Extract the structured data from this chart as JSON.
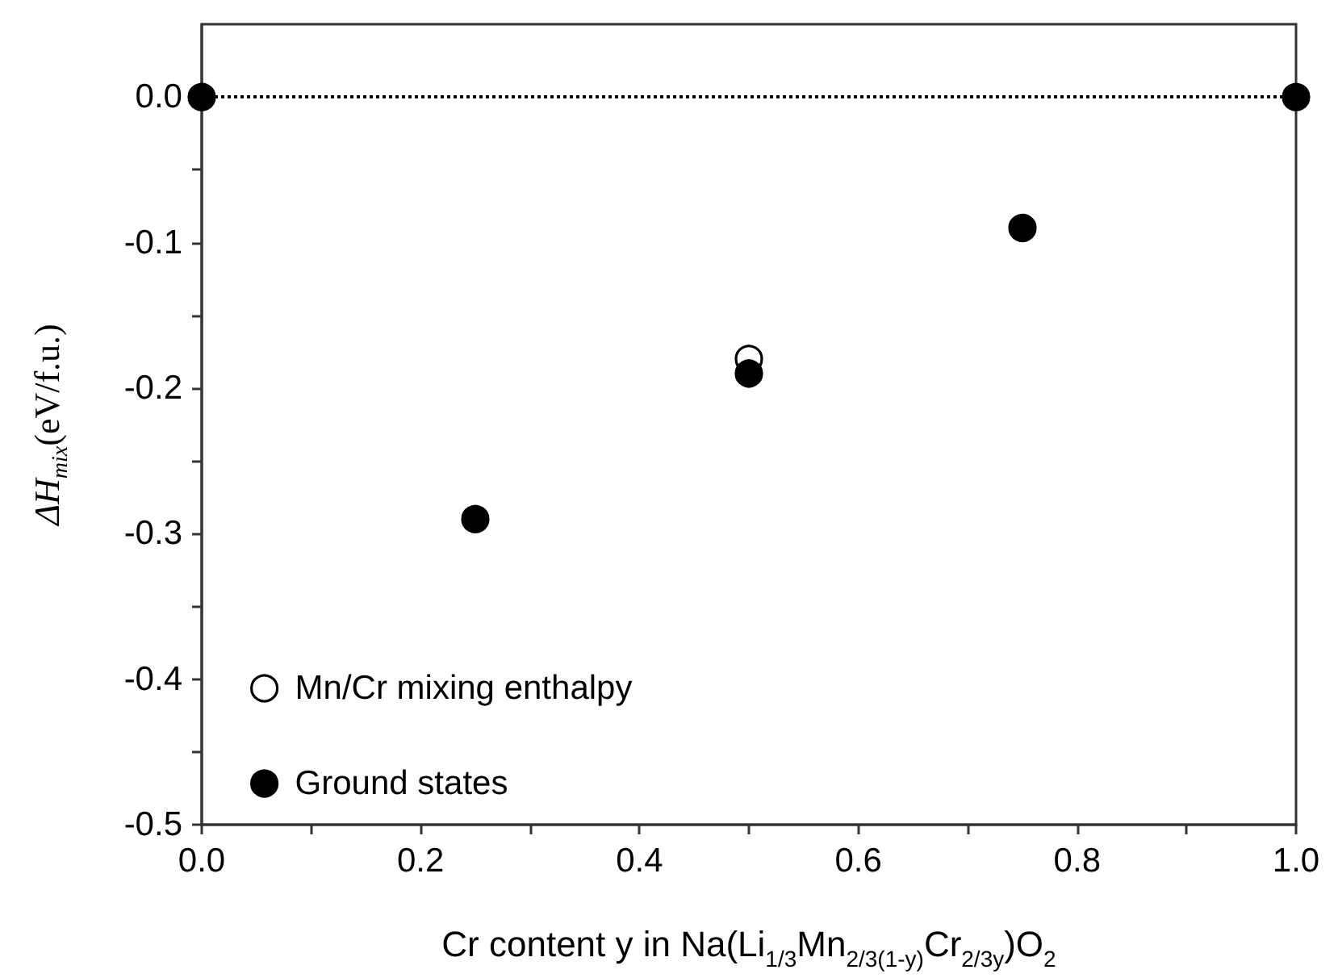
{
  "chart_data": {
    "type": "scatter",
    "xlabel": "Cr content y in Na(Li$_{1/3}$Mn$_{2/3(1-y)}$Cr$_{2/3y}$)O$_{2}$",
    "ylabel": "ΔH$_{mix}$(eV/f.u.)",
    "series": [
      {
        "name": "Mn/Cr mixing enthalpy",
        "color": "#ffffff",
        "x": [
          0.5
        ],
        "values": [
          -0.18
        ]
      },
      {
        "name": "Ground states",
        "color": "#000000",
        "x": [
          0,
          0.25,
          0.5,
          0.75,
          1
        ],
        "values": [
          0,
          -0.29,
          -0.19,
          -0.09,
          0
        ]
      }
    ],
    "xlim": [
      0,
      1
    ],
    "xticks": [
      {
        "value": 0,
        "label": "0.0"
      },
      {
        "value": 0.1,
        "label": null
      },
      {
        "value": 0.2,
        "label": "0.2"
      },
      {
        "value": 0.3,
        "label": null
      },
      {
        "value": 0.4,
        "label": "0.4"
      },
      {
        "value": 0.5,
        "label": null
      },
      {
        "value": 0.6,
        "label": "0.6"
      },
      {
        "value": 0.7,
        "label": null
      },
      {
        "value": 0.8,
        "label": "0.8"
      },
      {
        "value": 0.9,
        "label": null
      },
      {
        "value": 1,
        "label": "1.0"
      }
    ],
    "ylim": [
      -0.5,
      0.05
    ],
    "yticks": [
      {
        "value": -0.5,
        "label": "-0.5"
      },
      {
        "value": -0.45,
        "label": null
      },
      {
        "value": -0.4,
        "label": "-0.4"
      },
      {
        "value": -0.35,
        "label": null
      },
      {
        "value": -0.3,
        "label": "-0.3"
      },
      {
        "value": -0.25,
        "label": null
      },
      {
        "value": -0.2,
        "label": "-0.2"
      },
      {
        "value": -0.15,
        "label": null
      },
      {
        "value": -0.1,
        "label": "-0.1"
      },
      {
        "value": -0.05,
        "label": null
      },
      {
        "value": 0,
        "label": "0.0"
      }
    ],
    "ref_lines": [
      {
        "axis": "y",
        "value": 0,
        "color": "#000000",
        "line_style": "dotted"
      }
    ],
    "marker": "circle",
    "grid": false,
    "legend": "bottom left"
  }
}
